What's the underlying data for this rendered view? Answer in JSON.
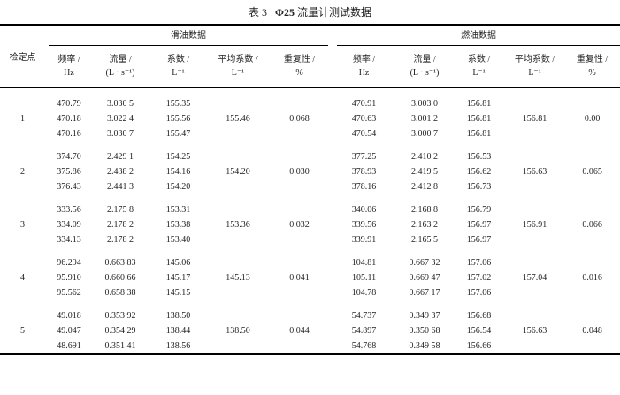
{
  "title": {
    "prefix": "表 3",
    "bold": "Φ25",
    "suffix": "流量计测试数据"
  },
  "headers": {
    "point": "检定点",
    "lube": "滑油数据",
    "fuel": "燃油数据",
    "columns": [
      {
        "name": "频率 /",
        "unit": "Hz"
      },
      {
        "name": "流量 /",
        "unit": "(L · s⁻¹)"
      },
      {
        "name": "系数 /",
        "unit": "L⁻¹"
      },
      {
        "name": "平均系数 /",
        "unit": "L⁻¹"
      },
      {
        "name": "重复性 /",
        "unit": "%"
      }
    ]
  },
  "groups": [
    {
      "point": "1",
      "lube": {
        "rows": [
          [
            "470.79",
            "3.030 5",
            "155.35"
          ],
          [
            "470.18",
            "3.022 4",
            "155.56"
          ],
          [
            "470.16",
            "3.030 7",
            "155.47"
          ]
        ],
        "avg": "155.46",
        "rep": "0.068"
      },
      "fuel": {
        "rows": [
          [
            "470.91",
            "3.003 0",
            "156.81"
          ],
          [
            "470.63",
            "3.001 2",
            "156.81"
          ],
          [
            "470.54",
            "3.000 7",
            "156.81"
          ]
        ],
        "avg": "156.81",
        "rep": "0.00"
      }
    },
    {
      "point": "2",
      "lube": {
        "rows": [
          [
            "374.70",
            "2.429 1",
            "154.25"
          ],
          [
            "375.86",
            "2.438 2",
            "154.16"
          ],
          [
            "376.43",
            "2.441 3",
            "154.20"
          ]
        ],
        "avg": "154.20",
        "rep": "0.030"
      },
      "fuel": {
        "rows": [
          [
            "377.25",
            "2.410 2",
            "156.53"
          ],
          [
            "378.93",
            "2.419 5",
            "156.62"
          ],
          [
            "378.16",
            "2.412 8",
            "156.73"
          ]
        ],
        "avg": "156.63",
        "rep": "0.065"
      }
    },
    {
      "point": "3",
      "lube": {
        "rows": [
          [
            "333.56",
            "2.175 8",
            "153.31"
          ],
          [
            "334.09",
            "2.178 2",
            "153.38"
          ],
          [
            "334.13",
            "2.178 2",
            "153.40"
          ]
        ],
        "avg": "153.36",
        "rep": "0.032"
      },
      "fuel": {
        "rows": [
          [
            "340.06",
            "2.168 8",
            "156.79"
          ],
          [
            "339.56",
            "2.163 2",
            "156.97"
          ],
          [
            "339.91",
            "2.165 5",
            "156.97"
          ]
        ],
        "avg": "156.91",
        "rep": "0.066"
      }
    },
    {
      "point": "4",
      "lube": {
        "rows": [
          [
            "96.294",
            "0.663 83",
            "145.06"
          ],
          [
            "95.910",
            "0.660 66",
            "145.17"
          ],
          [
            "95.562",
            "0.658 38",
            "145.15"
          ]
        ],
        "avg": "145.13",
        "rep": "0.041"
      },
      "fuel": {
        "rows": [
          [
            "104.81",
            "0.667 32",
            "157.06"
          ],
          [
            "105.11",
            "0.669 47",
            "157.02"
          ],
          [
            "104.78",
            "0.667 17",
            "157.06"
          ]
        ],
        "avg": "157.04",
        "rep": "0.016"
      }
    },
    {
      "point": "5",
      "lube": {
        "rows": [
          [
            "49.018",
            "0.353 92",
            "138.50"
          ],
          [
            "49.047",
            "0.354 29",
            "138.44"
          ],
          [
            "48.691",
            "0.351 41",
            "138.56"
          ]
        ],
        "avg": "138.50",
        "rep": "0.044"
      },
      "fuel": {
        "rows": [
          [
            "54.737",
            "0.349 37",
            "156.68"
          ],
          [
            "54.897",
            "0.350 68",
            "156.54"
          ],
          [
            "54.768",
            "0.349 58",
            "156.66"
          ]
        ],
        "avg": "156.63",
        "rep": "0.048"
      }
    }
  ]
}
